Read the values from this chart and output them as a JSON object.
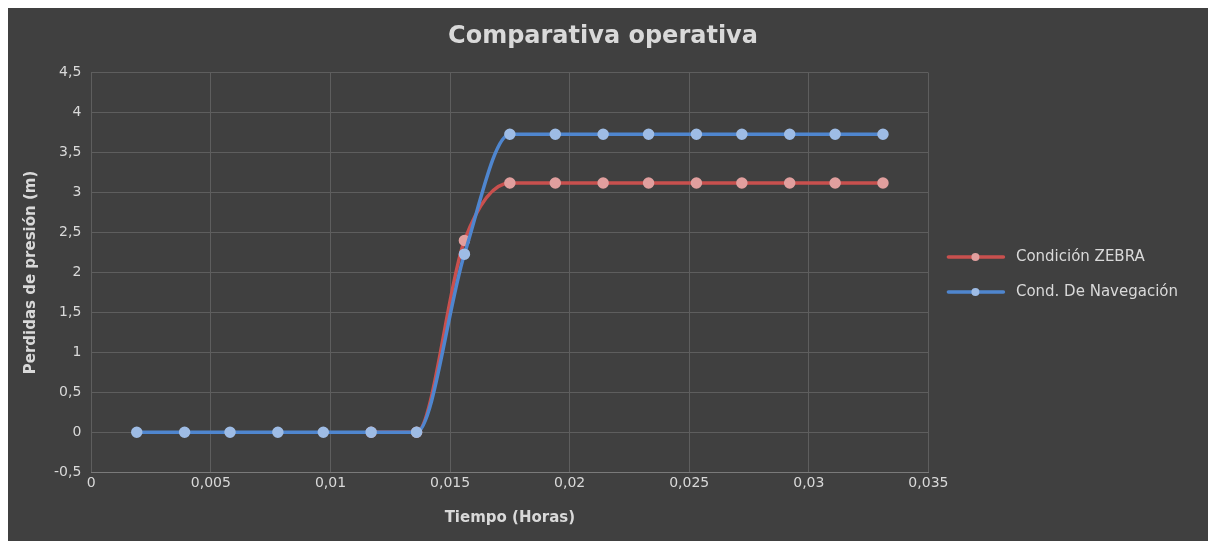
{
  "chart_data": {
    "type": "line",
    "title": "Comparativa operativa",
    "xlabel": "Tiempo (Horas)",
    "ylabel": "Perdidas de presión (m)",
    "x": [
      0.0019,
      0.0039,
      0.0058,
      0.0078,
      0.0097,
      0.0117,
      0.0136,
      0.0156,
      0.0175,
      0.0194,
      0.0214,
      0.0233,
      0.0253,
      0.0272,
      0.0292,
      0.0311,
      0.0331
    ],
    "series": [
      {
        "name": "Condición ZEBRA",
        "color": "#c9504e",
        "values": [
          null,
          null,
          null,
          null,
          null,
          0,
          0,
          2.4,
          3.12,
          3.12,
          3.12,
          3.12,
          3.12,
          3.12,
          3.12,
          3.12,
          3.12
        ]
      },
      {
        "name": "Cond. De Navegación",
        "color": "#4f86cf",
        "values": [
          0,
          0,
          0,
          0,
          0,
          0,
          0,
          2.23,
          3.73,
          3.73,
          3.73,
          3.73,
          3.73,
          3.73,
          3.73,
          3.73,
          3.73
        ]
      }
    ],
    "xlim": [
      0,
      0.035
    ],
    "xticks": [
      0,
      {
        "value": 0.005,
        "label": "0,005"
      },
      {
        "value": 0.01,
        "label": "0,01"
      },
      {
        "value": 0.015,
        "label": "0,015"
      },
      {
        "value": 0.02,
        "label": "0,02"
      },
      {
        "value": 0.025,
        "label": "0,025"
      },
      {
        "value": 0.03,
        "label": "0,03"
      },
      {
        "value": 0.035,
        "label": "0,035"
      }
    ],
    "ylim": [
      -0.5,
      4.5
    ],
    "yticks": [
      {
        "value": -0.5,
        "label": "-0,5"
      },
      0,
      {
        "value": 0.5,
        "label": "0,5"
      },
      1,
      {
        "value": 1.5,
        "label": "1,5"
      },
      2,
      {
        "value": 2.5,
        "label": "2,5"
      },
      3,
      {
        "value": 3.5,
        "label": "3,5"
      },
      4,
      {
        "value": 4.5,
        "label": "4,5"
      }
    ],
    "grid": true,
    "legend": "right",
    "marker": "circle",
    "line_style": "solid"
  }
}
